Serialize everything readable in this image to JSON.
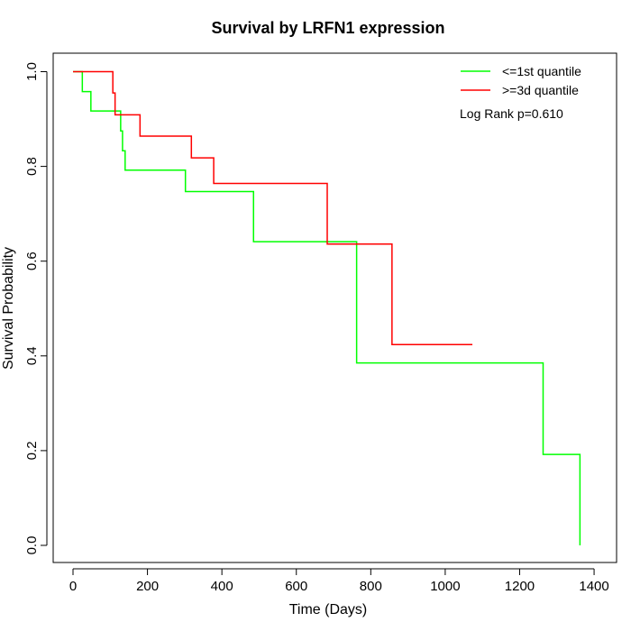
{
  "chart_data": {
    "type": "line",
    "step": true,
    "title": "Survival by LRFN1 expression",
    "xlabel": "Time (Days)",
    "ylabel": "Survival Probability",
    "xlim": [
      0,
      1400
    ],
    "ylim": [
      0,
      1
    ],
    "xticks": [
      0,
      200,
      400,
      600,
      800,
      1000,
      1200,
      1400
    ],
    "xtick_labels": [
      "0",
      "200",
      "400",
      "600",
      "800",
      "1000",
      "1200",
      "1400"
    ],
    "yticks": [
      0,
      0.2,
      0.4,
      0.6,
      0.8,
      1.0
    ],
    "ytick_labels": [
      "0.0",
      "0.2",
      "0.4",
      "0.6",
      "0.8",
      "1.0"
    ],
    "grid": false,
    "legend_position": "top-right",
    "annotation": "Log Rank p=0.610",
    "series": [
      {
        "name": "<=1st quantile",
        "color": "#00ff00",
        "x": [
          0,
          25,
          48,
          128,
          133,
          140,
          158,
          302,
          485,
          762,
          762,
          1263,
          1362
        ],
        "y": [
          1.0,
          0.958,
          0.917,
          0.875,
          0.833,
          0.792,
          0.792,
          0.747,
          0.641,
          0.513,
          0.385,
          0.192,
          0.0
        ],
        "end_x": 1362
      },
      {
        "name": ">=3d quantile",
        "color": "#ff0000",
        "x": [
          0,
          107,
          113,
          180,
          318,
          378,
          683,
          857
        ],
        "y": [
          1.0,
          0.955,
          0.909,
          0.864,
          0.818,
          0.764,
          0.636,
          0.424
        ],
        "end_x": 1073
      }
    ]
  }
}
